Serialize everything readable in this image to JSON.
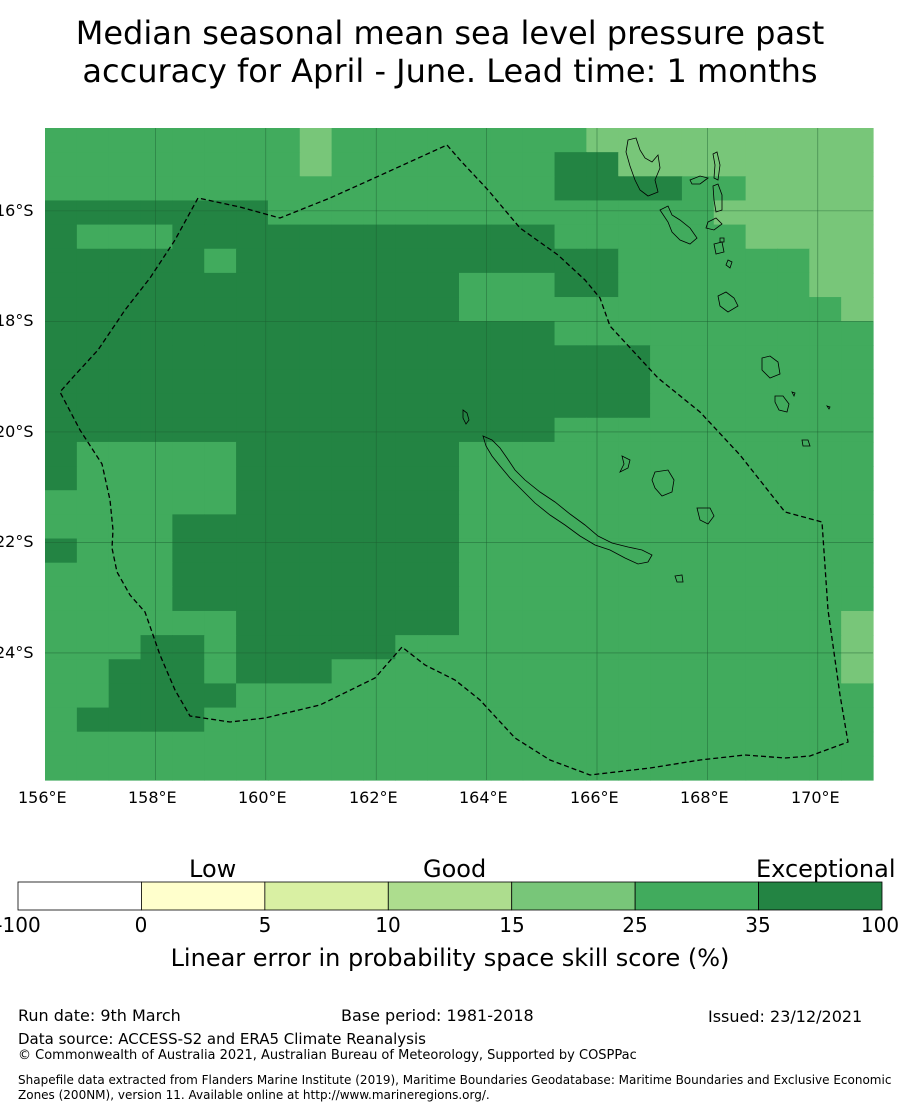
{
  "title_line1": "Median seasonal mean sea level pressure past",
  "title_line2": "accuracy for April - June. Lead time: 1 months",
  "map": {
    "lon_range": [
      156,
      171
    ],
    "lat_range": [
      -14.5,
      -26.3
    ],
    "lon_labels": [
      "156°E",
      "158°E",
      "160°E",
      "162°E",
      "164°E",
      "166°E",
      "168°E",
      "170°E"
    ],
    "lat_labels": [
      "16°S",
      "18°S",
      "20°S",
      "22°S",
      "24°S"
    ],
    "grid_palette": [
      "#ffffff",
      "#ffffcc",
      "#d9f0a3",
      "#addd8e",
      "#78c679",
      "#41ab5d",
      "#238443"
    ],
    "skill_grid_classes": [
      "55555555455555555444444444",
      "55555555455555556644444444",
      "55555555555555556666554444",
      "66666665555555555555544444",
      "65556666666666665555554444",
      "66666566666666666655555544",
      "66666666666665556655555544",
      "66666666666665555555555554",
      "66666666666666665555555555",
      "66666666666666666665555555",
      "66666666666666666665555555",
      "66666666666666666665555555",
      "66666666666666665555555555",
      "65555566666665555555555555",
      "65555566666665555555555555",
      "55555566666665555555555555",
      "55556666666665555555555555",
      "65556666666665555555555555",
      "55556666666665555555555555",
      "55556666666665555555555555",
      "55555566666665555555555554",
      "55566566666555555555555554",
      "55666566655555555555555554",
      "55666655555555555555555555",
      "56666555555555555555555555",
      "55555555555555555555555555",
      "55555555555555555555555555"
    ]
  },
  "colorbar": {
    "categories": [
      "Low",
      "Good",
      "Exceptional"
    ],
    "colors": [
      "#ffffff",
      "#ffffcc",
      "#d9f0a3",
      "#addd8e",
      "#78c679",
      "#41ab5d",
      "#238443"
    ],
    "ticks": [
      "-100",
      "0",
      "5",
      "10",
      "15",
      "25",
      "35",
      "100"
    ],
    "title": "Linear error in probability space skill score (%)"
  },
  "footer": {
    "run_date": "Run date: 9th March",
    "base_period": "Base period: 1981-2018",
    "issued": "Issued: 23/12/2021",
    "data_source": "Data source: ACCESS-S2 and ERA5 Climate Reanalysis",
    "copyright": "© Commonwealth of Australia 2021, Australian Bureau of Meteorology, Supported by COSPPac",
    "shapefile_line1": "Shapefile data extracted from Flanders Marine Institute (2019), Maritime Boundaries Geodatabase: Maritime Boundaries and Exclusive Economic",
    "shapefile_line2": "Zones (200NM), version 11. Available online at http://www.marineregions.org/."
  }
}
